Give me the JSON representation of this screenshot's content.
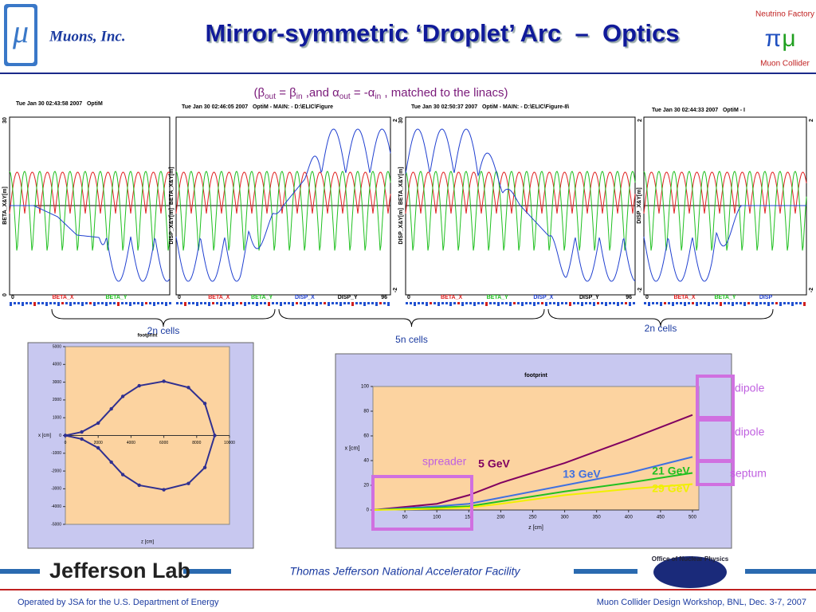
{
  "header": {
    "logo_symbol": "μ",
    "org": "Muons, Inc.",
    "title": "Mirror-symmetric ‘Droplet’ Arc  –  Optics",
    "subtitle": [
      "(β",
      "out",
      " = β",
      "in",
      " ,and α",
      "out",
      " = -α",
      "in",
      " , matched to the linacs)"
    ],
    "badge_top": "Neutrino Factory",
    "badge_bottom": "Muon Collider"
  },
  "optics_panels": [
    {
      "stamp": "Tue Jan 30 02:43:58 2007   OptiM",
      "axis_label": "BETA_X&Y[m]",
      "left_ticks": [
        30,
        0
      ],
      "right_ticks": [],
      "x_ticks": [
        0
      ],
      "legend": [
        {
          "name": "BETA_X",
          "color": "#e02020"
        },
        {
          "name": "BETA_Y",
          "color": "#20c020"
        }
      ]
    },
    {
      "stamp": "Tue Jan 30 02:46:05 2007   OptiM - MAIN: - D:\\ELIC\\Figure",
      "axis_label": "DISP_X&Y[m]  BETA_X&Y[m]",
      "left_ticks": [],
      "right_ticks": [
        2,
        -2
      ],
      "x_ticks": [
        0,
        96
      ],
      "legend": [
        {
          "name": "BETA_X",
          "color": "#e02020"
        },
        {
          "name": "BETA_Y",
          "color": "#20c020"
        },
        {
          "name": "DISP_X",
          "color": "#2040d0"
        },
        {
          "name": "DISP_Y",
          "color": "#000000"
        }
      ]
    },
    {
      "stamp": "Tue Jan 30 02:50:37 2007   OptiM - MAIN: - D:\\ELIC\\Figure-8\\",
      "axis_label": "DISP_X&Y[m]  BETA_X&Y[m]",
      "left_ticks": [
        30
      ],
      "right_ticks": [
        2,
        -2
      ],
      "x_ticks": [
        0,
        96
      ],
      "legend": [
        {
          "name": "BETA_X",
          "color": "#e02020"
        },
        {
          "name": "BETA_Y",
          "color": "#20c020"
        },
        {
          "name": "DISP_X",
          "color": "#2040d0"
        },
        {
          "name": "DISP_Y",
          "color": "#000000"
        }
      ]
    },
    {
      "stamp": "Tue Jan 30 02:44:33 2007   OptiM - I",
      "axis_label": "DISP_X&Y[m]",
      "left_ticks": [],
      "right_ticks": [
        2,
        -2
      ],
      "x_ticks": [
        0
      ],
      "legend": [
        {
          "name": "BETA_X",
          "color": "#e02020"
        },
        {
          "name": "BETA_Y",
          "color": "#20c020"
        },
        {
          "name": "DISP",
          "color": "#2040d0"
        }
      ]
    }
  ],
  "brackets": [
    "2n cells",
    "5n cells",
    "2n cells"
  ],
  "footprint_left": {
    "type": "line",
    "title": "footprint",
    "xlabel": "z [cm]",
    "ylabel": "x [cm]",
    "color": "#303090",
    "x": [
      0,
      1000,
      2000,
      2800,
      3500,
      4500,
      6000,
      7500,
      8500,
      9100,
      8500,
      7500,
      6000,
      4500,
      3500,
      2800,
      2000,
      1000,
      0
    ],
    "values": [
      0,
      200,
      700,
      1500,
      2200,
      2800,
      3050,
      2700,
      1800,
      0,
      -1800,
      -2700,
      -3050,
      -2800,
      -2200,
      -1500,
      -700,
      -200,
      0
    ],
    "xlim": [
      0,
      10000
    ],
    "xticks": [
      0,
      2000,
      4000,
      6000,
      8000,
      10000
    ],
    "ylim": [
      -5000,
      5000
    ],
    "yticks": [
      -5000,
      -4000,
      -3000,
      -2000,
      -1000,
      0,
      1000,
      2000,
      3000,
      4000,
      5000
    ]
  },
  "footprint_right": {
    "type": "line",
    "title": "footprint",
    "xlabel": "z [cm]",
    "ylabel": "x [cm]",
    "x": [
      0,
      100,
      150,
      200,
      300,
      400,
      500
    ],
    "series": [
      {
        "name": "5 GeV",
        "color": "#800060",
        "values": [
          0,
          5,
          12,
          22,
          38,
          57,
          77
        ]
      },
      {
        "name": "13 GeV",
        "color": "#4070e0",
        "values": [
          0,
          3,
          5,
          10,
          20,
          30,
          43
        ]
      },
      {
        "name": "21 GeV",
        "color": "#20c020",
        "values": [
          0,
          2,
          3,
          7,
          15,
          22,
          30
        ]
      },
      {
        "name": "29 GeV",
        "color": "#f0f000",
        "values": [
          0,
          1,
          2,
          5,
          12,
          17,
          21
        ]
      }
    ],
    "xlim": [
      0,
      510
    ],
    "xticks": [
      50,
      100,
      150,
      200,
      250,
      300,
      350,
      400,
      450,
      500
    ],
    "ylim": [
      0,
      100
    ],
    "yticks": [
      0,
      20,
      40,
      60,
      80,
      100
    ],
    "annotations": [
      "spreader",
      "dipole",
      "dipole",
      "septum"
    ]
  },
  "footer": {
    "lab": "Jefferson Lab",
    "facility": "Thomas Jefferson National Accelerator Facility",
    "office": "Office of Nuclear Physics",
    "left": "Operated by JSA for the U.S. Department of Energy",
    "right": "Muon Collider Design Workshop, BNL, Dec. 3-7, 2007"
  }
}
